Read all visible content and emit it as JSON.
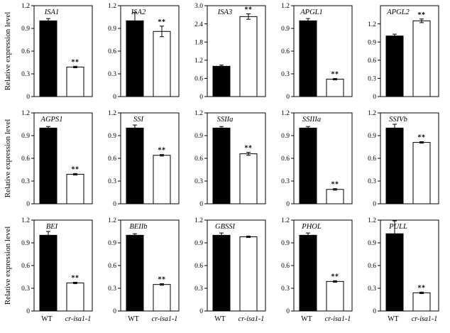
{
  "ylabel": "Relative expression level",
  "xlabels": [
    "WT",
    "cr-isa1-1"
  ],
  "chart_data": [
    {
      "type": "bar",
      "title": "ISA1",
      "categories": [
        "WT",
        "cr-isa1-1"
      ],
      "values": [
        1.0,
        0.39
      ],
      "errors": [
        0.03,
        0.01
      ],
      "significance": [
        "",
        "**"
      ],
      "ylim": [
        0,
        1.2
      ],
      "yticks": [
        "0",
        "0.3",
        "0.6",
        "0.9",
        "1.2"
      ]
    },
    {
      "type": "bar",
      "title": "ISA2",
      "categories": [
        "WT",
        "cr-isa1-1"
      ],
      "values": [
        1.0,
        0.86
      ],
      "errors": [
        0.11,
        0.07
      ],
      "significance": [
        "",
        "**"
      ],
      "ylim": [
        0,
        1.2
      ],
      "yticks": [
        "0",
        "0.3",
        "0.6",
        "0.9",
        "1.2"
      ]
    },
    {
      "type": "bar",
      "title": "ISA3",
      "categories": [
        "WT",
        "cr-isa1-1"
      ],
      "values": [
        1.0,
        2.64
      ],
      "errors": [
        0.04,
        0.09
      ],
      "significance": [
        "",
        "**"
      ],
      "ylim": [
        0,
        3.0
      ],
      "yticks": [
        "0",
        "0.6",
        "1.2",
        "1.8",
        "2.4",
        "3.0"
      ]
    },
    {
      "type": "bar",
      "title": "APGL1",
      "categories": [
        "WT",
        "cr-isa1-1"
      ],
      "values": [
        1.0,
        0.23
      ],
      "errors": [
        0.03,
        0.01
      ],
      "significance": [
        "",
        "**"
      ],
      "ylim": [
        0,
        1.2
      ],
      "yticks": [
        "0",
        "0.3",
        "0.6",
        "0.9",
        "1.2"
      ]
    },
    {
      "type": "bar",
      "title": "APGL2",
      "categories": [
        "WT",
        "cr-isa1-1"
      ],
      "values": [
        1.0,
        1.25
      ],
      "errors": [
        0.03,
        0.03
      ],
      "significance": [
        "",
        "**"
      ],
      "ylim": [
        0,
        1.5
      ],
      "yticks": [
        "0",
        "0.3",
        "0.6",
        "0.9",
        "1.2"
      ]
    },
    {
      "type": "bar",
      "title": "AGPS1",
      "categories": [
        "WT",
        "cr-isa1-1"
      ],
      "values": [
        1.0,
        0.39
      ],
      "errors": [
        0.02,
        0.01
      ],
      "significance": [
        "",
        "**"
      ],
      "ylim": [
        0,
        1.2
      ],
      "yticks": [
        "0",
        "0.3",
        "0.6",
        "0.9",
        "1.2"
      ]
    },
    {
      "type": "bar",
      "title": "SSI",
      "categories": [
        "WT",
        "cr-isa1-1"
      ],
      "values": [
        1.0,
        0.64
      ],
      "errors": [
        0.04,
        0.01
      ],
      "significance": [
        "",
        "**"
      ],
      "ylim": [
        0,
        1.2
      ],
      "yticks": [
        "0",
        "0.3",
        "0.6",
        "0.9",
        "1.2"
      ]
    },
    {
      "type": "bar",
      "title": "SSIIa",
      "categories": [
        "WT",
        "cr-isa1-1"
      ],
      "values": [
        1.0,
        0.66
      ],
      "errors": [
        0.02,
        0.02
      ],
      "significance": [
        "",
        "**"
      ],
      "ylim": [
        0,
        1.2
      ],
      "yticks": [
        "0",
        "0.3",
        "0.6",
        "0.9",
        "1.2"
      ]
    },
    {
      "type": "bar",
      "title": "SSIIIa",
      "categories": [
        "WT",
        "cr-isa1-1"
      ],
      "values": [
        1.0,
        0.19
      ],
      "errors": [
        0.02,
        0.01
      ],
      "significance": [
        "",
        "**"
      ],
      "ylim": [
        0,
        1.2
      ],
      "yticks": [
        "0",
        "0.3",
        "0.6",
        "0.9",
        "1.2"
      ]
    },
    {
      "type": "bar",
      "title": "SSIVb",
      "categories": [
        "WT",
        "cr-isa1-1"
      ],
      "values": [
        1.0,
        0.81
      ],
      "errors": [
        0.05,
        0.01
      ],
      "significance": [
        "",
        "**"
      ],
      "ylim": [
        0,
        1.2
      ],
      "yticks": [
        "0",
        "0.3",
        "0.6",
        "0.9",
        "1.2"
      ]
    },
    {
      "type": "bar",
      "title": "BEI",
      "categories": [
        "WT",
        "cr-isa1-1"
      ],
      "values": [
        1.0,
        0.37
      ],
      "errors": [
        0.05,
        0.01
      ],
      "significance": [
        "",
        "**"
      ],
      "ylim": [
        0,
        1.2
      ],
      "yticks": [
        "0",
        "0.3",
        "0.6",
        "0.9",
        "1.2"
      ]
    },
    {
      "type": "bar",
      "title": "BEIIb",
      "categories": [
        "WT",
        "cr-isa1-1"
      ],
      "values": [
        1.0,
        0.35
      ],
      "errors": [
        0.02,
        0.01
      ],
      "significance": [
        "",
        "**"
      ],
      "ylim": [
        0,
        1.2
      ],
      "yticks": [
        "0",
        "0.3",
        "0.6",
        "0.9",
        "1.2"
      ]
    },
    {
      "type": "bar",
      "title": "GBSSI",
      "categories": [
        "WT",
        "cr-isa1-1"
      ],
      "values": [
        1.0,
        0.98
      ],
      "errors": [
        0.03,
        0.01
      ],
      "significance": [
        "",
        ""
      ],
      "ylim": [
        0,
        1.2
      ],
      "yticks": [
        "0",
        "0.3",
        "0.6",
        "0.9",
        "1.2"
      ]
    },
    {
      "type": "bar",
      "title": "PHOL",
      "categories": [
        "WT",
        "cr-isa1-1"
      ],
      "values": [
        1.0,
        0.39
      ],
      "errors": [
        0.03,
        0.01
      ],
      "significance": [
        "",
        "**"
      ],
      "ylim": [
        0,
        1.2
      ],
      "yticks": [
        "0",
        "0.3",
        "0.6",
        "0.9",
        "1.2"
      ]
    },
    {
      "type": "bar",
      "title": "PULL",
      "categories": [
        "WT",
        "cr-isa1-1"
      ],
      "values": [
        1.02,
        0.24
      ],
      "errors": [
        0.17,
        0.01
      ],
      "significance": [
        "",
        "**"
      ],
      "ylim": [
        0,
        1.2
      ],
      "yticks": [
        "0",
        "0.3",
        "0.6",
        "0.9",
        "1.2"
      ]
    }
  ]
}
